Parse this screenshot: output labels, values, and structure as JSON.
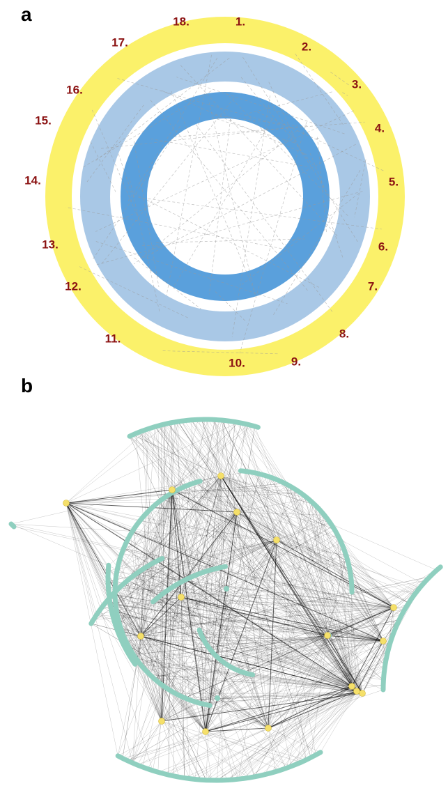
{
  "panel_a": {
    "label": "a",
    "reagents": [
      {
        "number": "1."
      },
      {
        "number": "2."
      },
      {
        "number": "3."
      },
      {
        "number": "4."
      },
      {
        "number": "5."
      },
      {
        "number": "6."
      },
      {
        "number": "7."
      },
      {
        "number": "8."
      },
      {
        "number": "9."
      },
      {
        "number": "10."
      },
      {
        "number": "11."
      },
      {
        "number": "12."
      },
      {
        "number": "13."
      },
      {
        "number": "14."
      },
      {
        "number": "15."
      },
      {
        "number": "16."
      },
      {
        "number": "17."
      },
      {
        "number": "18."
      }
    ]
  },
  "panel_b": {
    "label": "b"
  }
}
